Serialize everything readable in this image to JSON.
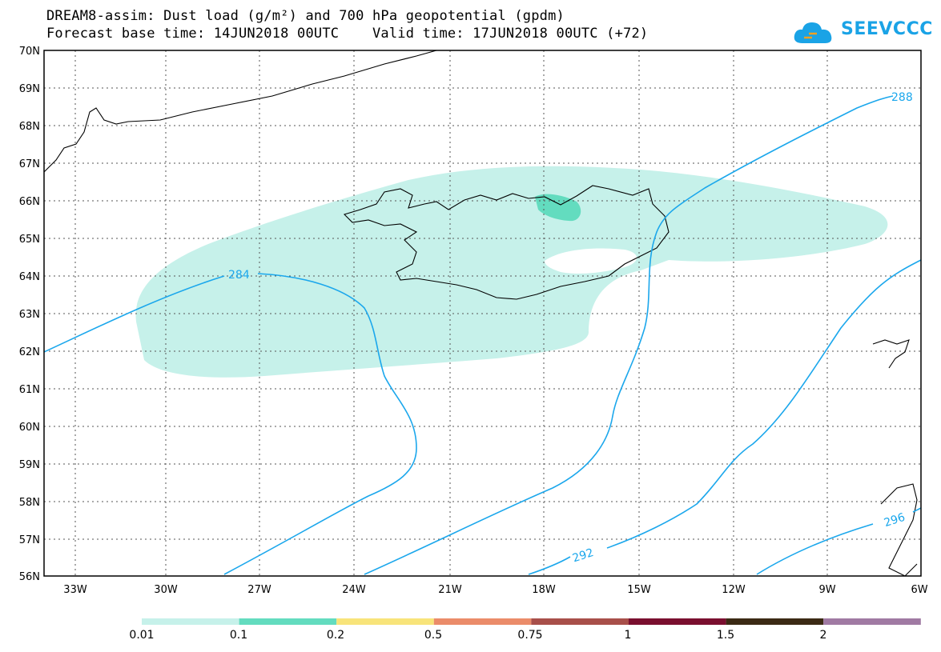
{
  "header": {
    "title_line1": "DREAM8-assim: Dust load (g/m²) and 700 hPa geopotential (gpdm)",
    "title_line2": "Forecast base time: 14JUN2018 00UTC    Valid time: 17JUN2018 00UTC (+72)",
    "logo_text": "SEEVCCC"
  },
  "map": {
    "lat_labels": [
      "70N",
      "69N",
      "68N",
      "67N",
      "66N",
      "65N",
      "64N",
      "63N",
      "62N",
      "61N",
      "60N",
      "59N",
      "58N",
      "57N",
      "56N"
    ],
    "lon_labels": [
      "33W",
      "30W",
      "27W",
      "24W",
      "21W",
      "18W",
      "15W",
      "12W",
      "9W",
      "6W"
    ],
    "contour_labels": [
      "284",
      "288",
      "292",
      "296"
    ],
    "colors": {
      "dust_low": "#c6f1ea",
      "dust_mid": "#63dcbf",
      "contour": "#1ba7ec"
    }
  },
  "legend": {
    "labels": [
      "0.01",
      "0.1",
      "0.2",
      "0.5",
      "0.75",
      "1",
      "1.5",
      "2"
    ],
    "colors": [
      "#c6f1ea",
      "#63dcbf",
      "#f8e47a",
      "#eb8c6a",
      "#a84f4a",
      "#7a0f2f",
      "#3b2a14",
      "#a07aa3"
    ]
  }
}
